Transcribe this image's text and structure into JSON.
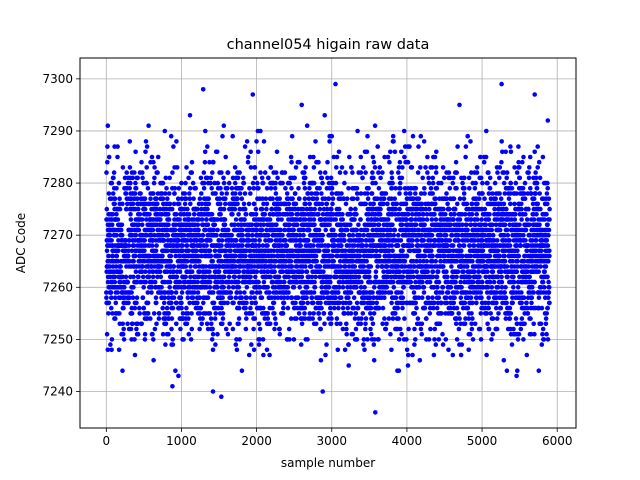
{
  "chart_data": {
    "type": "scatter",
    "title": "channel054 higain raw data",
    "xlabel": "sample number",
    "ylabel": "ADC Code",
    "xlim": [
      -350,
      6250
    ],
    "ylim": [
      7233,
      7304
    ],
    "xticks": [
      0,
      1000,
      2000,
      3000,
      4000,
      5000,
      6000
    ],
    "yticks": [
      7240,
      7250,
      7260,
      7270,
      7280,
      7290,
      7300
    ],
    "grid": true,
    "marker_color": "#0000ff",
    "series": [
      {
        "n_points": 5900,
        "x_range": [
          0,
          5899
        ],
        "approx_mean": 7267,
        "approx_std": 8,
        "outliers": [
          {
            "x": 20,
            "y": 7248
          },
          {
            "x": 880,
            "y": 7241
          },
          {
            "x": 960,
            "y": 7243
          },
          {
            "x": 1290,
            "y": 7298
          },
          {
            "x": 1420,
            "y": 7240
          },
          {
            "x": 1530,
            "y": 7239
          },
          {
            "x": 1950,
            "y": 7297
          },
          {
            "x": 2880,
            "y": 7240
          },
          {
            "x": 3050,
            "y": 7299
          },
          {
            "x": 3580,
            "y": 7236
          },
          {
            "x": 5260,
            "y": 7299
          },
          {
            "x": 5460,
            "y": 7243
          },
          {
            "x": 5700,
            "y": 7297
          },
          {
            "x": 2600,
            "y": 7295
          },
          {
            "x": 4700,
            "y": 7295
          }
        ]
      }
    ]
  }
}
